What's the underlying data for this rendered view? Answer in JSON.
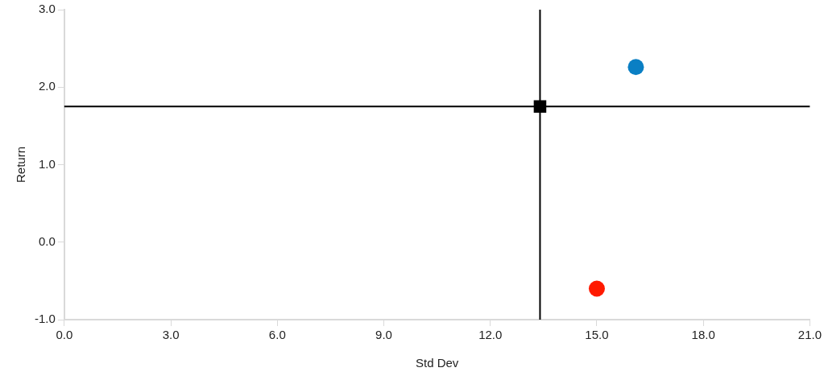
{
  "chart_data": {
    "type": "scatter",
    "xlabel": "Std Dev",
    "ylabel": "Return",
    "xlim": [
      0,
      21
    ],
    "ylim": [
      -1,
      3
    ],
    "xticks": [
      {
        "value": 0,
        "label": "0.0"
      },
      {
        "value": 3,
        "label": "3.0"
      },
      {
        "value": 6,
        "label": "6.0"
      },
      {
        "value": 9,
        "label": "9.0"
      },
      {
        "value": 12,
        "label": "12.0"
      },
      {
        "value": 15,
        "label": "15.0"
      },
      {
        "value": 18,
        "label": "18.0"
      },
      {
        "value": 21,
        "label": "21.0"
      }
    ],
    "yticks": [
      {
        "value": -1,
        "label": "-1.0"
      },
      {
        "value": 0,
        "label": "0.0"
      },
      {
        "value": 1,
        "label": "1.0"
      },
      {
        "value": 2,
        "label": "2.0"
      },
      {
        "value": 3,
        "label": "3.0"
      }
    ],
    "grid": false,
    "legend": false,
    "ref_lines": [
      {
        "axis": "x",
        "value": 13.4,
        "color": "#000000"
      },
      {
        "axis": "y",
        "value": 1.75,
        "color": "#000000"
      }
    ],
    "series": [
      {
        "color": "#0a7fc4",
        "marker": "circle",
        "x": [
          16.1
        ],
        "values": [
          2.26
        ]
      },
      {
        "color": "#ff1a00",
        "marker": "circle",
        "x": [
          15.0
        ],
        "values": [
          -0.6
        ]
      },
      {
        "color": "#000000",
        "marker": "square",
        "x": [
          13.4
        ],
        "values": [
          1.75
        ]
      }
    ]
  }
}
